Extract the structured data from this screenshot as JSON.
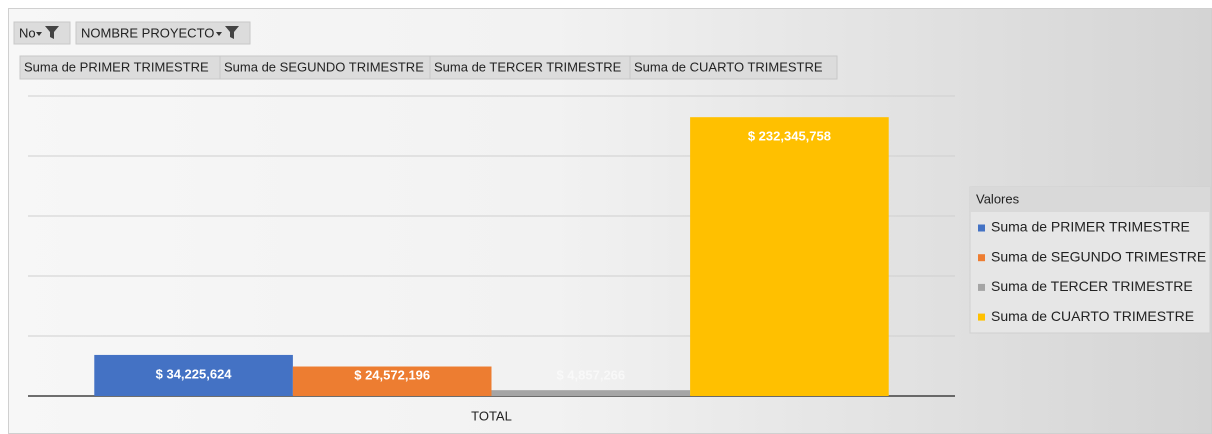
{
  "filters": [
    "No",
    "NOMBRE PROYECTO"
  ],
  "chart_data": {
    "type": "bar",
    "categories": [
      "TOTAL"
    ],
    "legend_title": "Valores",
    "legend": "right",
    "grid": true,
    "ylim": [
      0,
      250000000
    ],
    "yticks": [
      0,
      50000000,
      100000000,
      150000000,
      200000000,
      250000000
    ],
    "series": [
      {
        "name": "Suma de PRIMER TRIMESTRE",
        "color": "#4472c4",
        "values": [
          34225624
        ],
        "value_labels": [
          "$ 34,225,624"
        ]
      },
      {
        "name": "Suma de SEGUNDO TRIMESTRE",
        "color": "#ed7d31",
        "values": [
          24572196
        ],
        "value_labels": [
          "$ 24,572,196"
        ]
      },
      {
        "name": "Suma de TERCER TRIMESTRE",
        "color": "#a5a5a5",
        "values": [
          4857266
        ],
        "value_labels": [
          "$ 4,857,266"
        ]
      },
      {
        "name": "Suma de CUARTO TRIMESTRE",
        "color": "#ffc000",
        "values": [
          232345758
        ],
        "value_labels": [
          "$ 232,345,758"
        ]
      }
    ]
  }
}
